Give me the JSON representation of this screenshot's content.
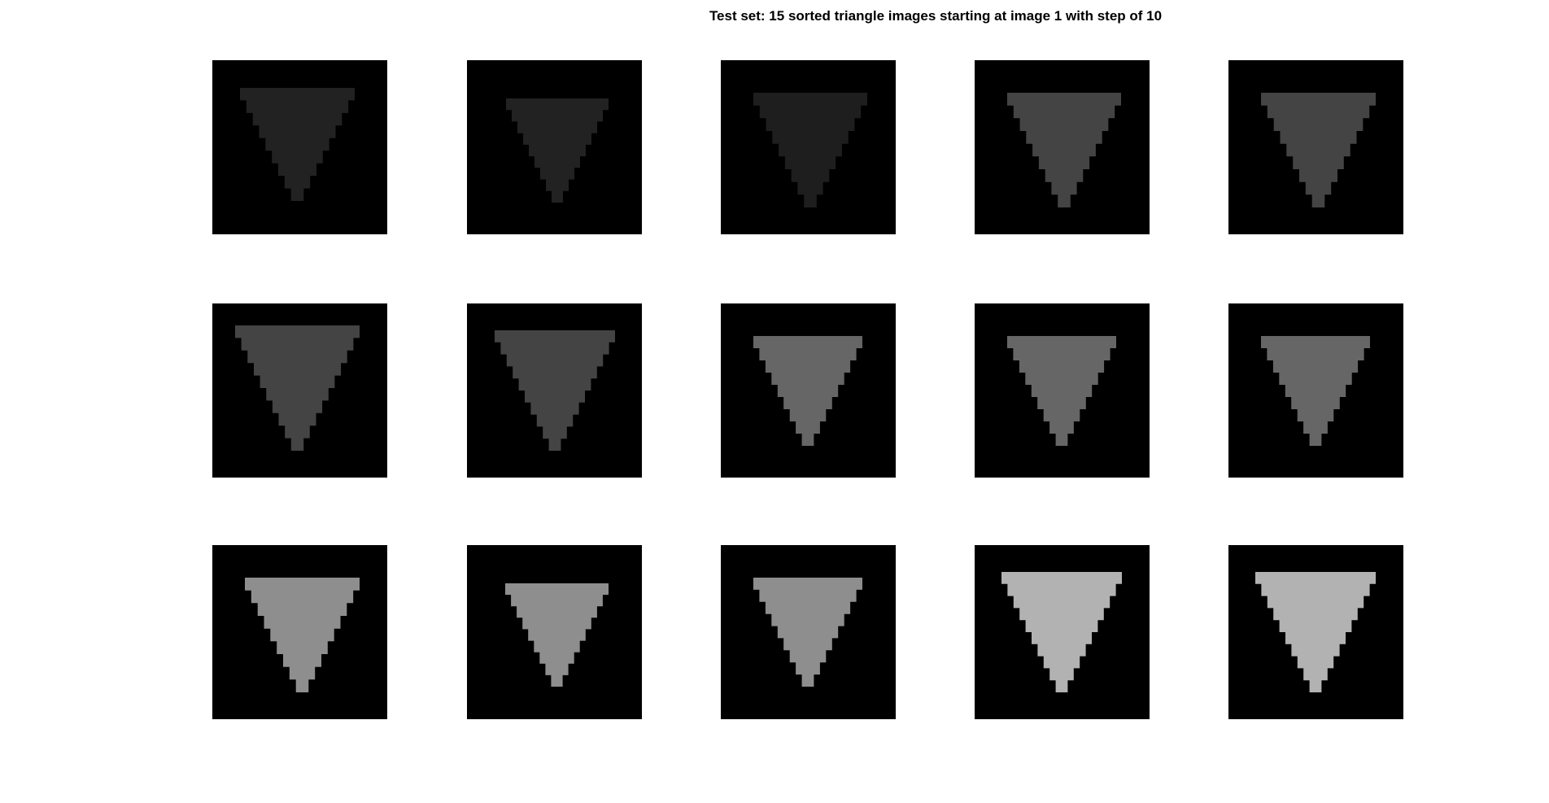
{
  "figure": {
    "title": "Test set: 15 sorted triangle images starting at image 1 with step of 10"
  },
  "images": [
    {
      "gray": "#222222"
    },
    {
      "gray": "#222222"
    },
    {
      "gray": "#1e1e1e"
    },
    {
      "gray": "#444444"
    },
    {
      "gray": "#444444"
    },
    {
      "gray": "#444444"
    },
    {
      "gray": "#444444"
    },
    {
      "gray": "#666666"
    },
    {
      "gray": "#666666"
    },
    {
      "gray": "#666666"
    },
    {
      "gray": "#8e8e8e"
    },
    {
      "gray": "#8e8e8e"
    },
    {
      "gray": "#8e8e8e"
    },
    {
      "gray": "#b2b2b2"
    },
    {
      "gray": "#b2b2b2"
    }
  ]
}
